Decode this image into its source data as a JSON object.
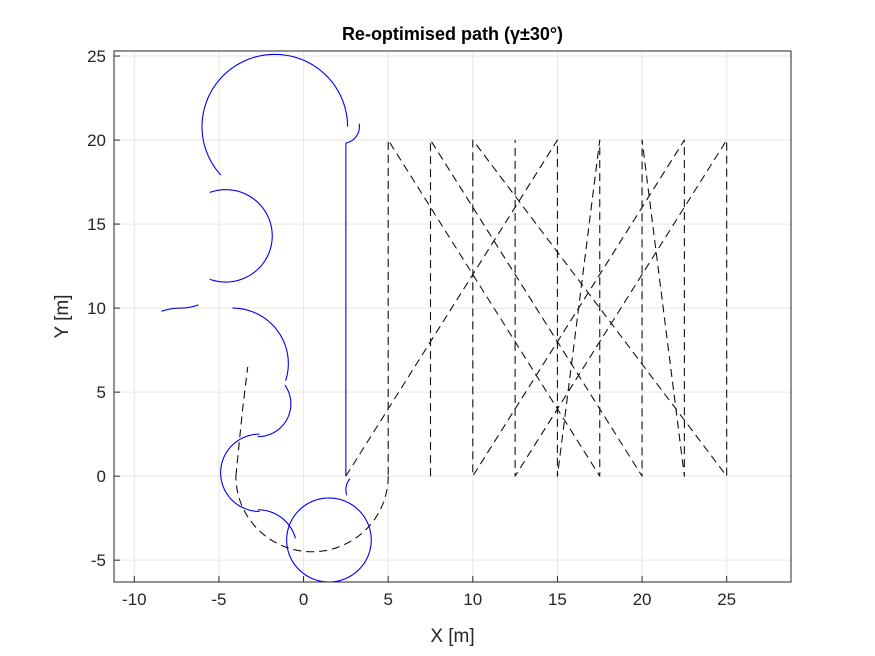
{
  "chart_data": {
    "type": "line",
    "title": "Re-optimised path (γ±30°)",
    "xlabel": "X [m]",
    "ylabel": "Y [m]",
    "xlim": [
      -11.2,
      28.8
    ],
    "ylim": [
      -6.3,
      25.3
    ],
    "grid": true,
    "box": true,
    "x_ticks": [
      -10,
      -5,
      0,
      5,
      10,
      15,
      20,
      25
    ],
    "y_ticks": [
      -5,
      0,
      5,
      10,
      15,
      20,
      25
    ],
    "x_tick_labels": [
      "-10",
      "-5",
      "0",
      "5",
      "10",
      "15",
      "20",
      "25"
    ],
    "y_tick_labels": [
      "-5",
      "0",
      "5",
      "10",
      "15",
      "20",
      "25"
    ],
    "colors": {
      "path": "#0000ee",
      "lawnmower": "#111111",
      "grid": "#e6e6e6",
      "axis": "#262626"
    },
    "series": [
      {
        "style": "dashed",
        "color": "#111111",
        "segments": [
          {
            "kind": "line",
            "points": [
              [
                2.5,
                0
              ],
              [
                15,
                20
              ],
              [
                15,
                0
              ],
              [
                17.5,
                20
              ],
              [
                17.5,
                0
              ],
              [
                5,
                20
              ],
              [
                5,
                0
              ]
            ]
          },
          {
            "kind": "line",
            "points": [
              [
                7.5,
                0
              ],
              [
                7.5,
                20
              ],
              [
                20,
                0
              ],
              [
                20,
                20
              ],
              [
                22.5,
                0
              ],
              [
                22.5,
                20
              ],
              [
                10,
                0
              ],
              [
                10,
                20
              ],
              [
                25,
                0
              ],
              [
                25,
                20
              ],
              [
                12.5,
                0
              ],
              [
                12.5,
                20
              ]
            ]
          },
          {
            "kind": "arc",
            "center": [
              0.5,
              0
            ],
            "radius": 4.5,
            "from_deg": 0,
            "to_deg": -180
          },
          {
            "kind": "line",
            "points": [
              [
                -4,
                0
              ],
              [
                -3.6,
                4
              ],
              [
                -3.3,
                6.5
              ]
            ]
          }
        ]
      },
      {
        "style": "solid",
        "color": "#0000ee",
        "segments": [
          {
            "kind": "line",
            "points": [
              [
                2.5,
                19.8
              ],
              [
                2.5,
                0
              ]
            ]
          },
          {
            "kind": "arc",
            "center": [
              2.3,
              20.8
            ],
            "radius": 1.0,
            "from_deg": -80,
            "to_deg": 10
          },
          {
            "kind": "arc",
            "center": [
              -1.7,
              20.8
            ],
            "radius": 4.3,
            "from_deg": 0,
            "to_deg": 222
          },
          {
            "kind": "arc",
            "center": [
              -4.6,
              14.3
            ],
            "radius": 2.75,
            "from_deg": 110,
            "to_deg": -110
          },
          {
            "kind": "arc",
            "center": [
              -7.3,
              6.8
            ],
            "radius": 3.2,
            "from_deg": 110,
            "to_deg": 90
          },
          {
            "kind": "arc",
            "center": [
              -7.3,
              13.2
            ],
            "radius": 3.2,
            "from_deg": -90,
            "to_deg": -70
          },
          {
            "kind": "arc",
            "center": [
              -4.2,
              6.7
            ],
            "radius": 3.3,
            "from_deg": 90,
            "to_deg": -18
          },
          {
            "kind": "arc",
            "center": [
              -2.7,
              4.3
            ],
            "radius": 1.95,
            "from_deg": 35,
            "to_deg": -90
          },
          {
            "kind": "arc",
            "center": [
              -2.6,
              0.2
            ],
            "radius": 2.3,
            "from_deg": 90,
            "to_deg": 270
          },
          {
            "kind": "arc",
            "center": [
              -2.7,
              -4.3
            ],
            "radius": 2.3,
            "from_deg": 90,
            "to_deg": 15
          },
          {
            "kind": "arc",
            "center": [
              1.5,
              -3.8
            ],
            "radius": 2.5,
            "from_deg": 150,
            "to_deg": -210
          },
          {
            "kind": "arc",
            "center": [
              3.5,
              -0.8
            ],
            "radius": 1.0,
            "from_deg": 200,
            "to_deg": 140
          }
        ]
      }
    ]
  }
}
